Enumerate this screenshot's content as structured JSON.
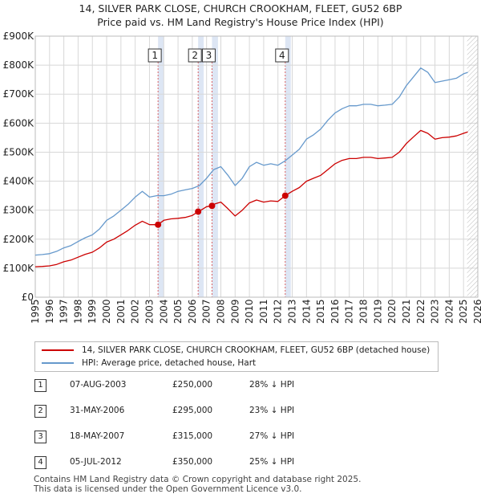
{
  "title_line1": "14, SILVER PARK CLOSE, CHURCH CROOKHAM, FLEET, GU52 6BP",
  "title_line2": "Price paid vs. HM Land Registry's House Price Index (HPI)",
  "legend": {
    "red_label": "14, SILVER PARK CLOSE, CHURCH CROOKHAM, FLEET, GU52 6BP (detached house)",
    "blue_label": "HPI: Average price, detached house, Hart"
  },
  "sales": [
    {
      "num": "1",
      "date": "07-AUG-2003",
      "price": "£250,000",
      "hpi": "28% ↓ HPI"
    },
    {
      "num": "2",
      "date": "31-MAY-2006",
      "price": "£295,000",
      "hpi": "23% ↓ HPI"
    },
    {
      "num": "3",
      "date": "18-MAY-2007",
      "price": "£315,000",
      "hpi": "27% ↓ HPI"
    },
    {
      "num": "4",
      "date": "05-JUL-2012",
      "price": "£350,000",
      "hpi": "25% ↓ HPI"
    }
  ],
  "footer_line1": "Contains HM Land Registry data © Crown copyright and database right 2025.",
  "footer_line2": "This data is licensed under the Open Government Licence v3.0.",
  "colors": {
    "red": "#cc0000",
    "blue": "#6699cc",
    "band": "#dde6f4",
    "grid": "#d8d8d8"
  },
  "chart_data": {
    "type": "line",
    "title": "14, SILVER PARK CLOSE, CHURCH CROOKHAM, FLEET, GU52 6BP",
    "subtitle": "Price paid vs. HM Land Registry's House Price Index (HPI)",
    "xlabel": "",
    "ylabel": "",
    "xlim": [
      1995,
      2026
    ],
    "ylim": [
      0,
      900000
    ],
    "x_ticks": [
      1995,
      1996,
      1997,
      1998,
      1999,
      2000,
      2001,
      2002,
      2003,
      2004,
      2005,
      2006,
      2007,
      2008,
      2009,
      2010,
      2011,
      2012,
      2013,
      2014,
      2015,
      2016,
      2017,
      2018,
      2019,
      2020,
      2021,
      2022,
      2023,
      2024,
      2025,
      2026
    ],
    "y_ticks": [
      0,
      100000,
      200000,
      300000,
      400000,
      500000,
      600000,
      700000,
      800000,
      900000
    ],
    "y_tick_labels": [
      "£0",
      "£100K",
      "£200K",
      "£300K",
      "£400K",
      "£500K",
      "£600K",
      "£700K",
      "£800K",
      "£900K"
    ],
    "grid": true,
    "legend_position": "below",
    "projection_start": 2025.25,
    "sale_bands": [
      {
        "label": "1",
        "x0": 2003.6,
        "x1": 2004.0
      },
      {
        "label": "2",
        "x0": 2006.41,
        "x1": 2006.8
      },
      {
        "label": "3",
        "x0": 2007.38,
        "x1": 2007.8
      },
      {
        "label": "4",
        "x0": 2012.51,
        "x1": 2012.9
      }
    ],
    "sale_points": [
      {
        "label": "1",
        "x": 2003.6,
        "y": 250000
      },
      {
        "label": "2",
        "x": 2006.41,
        "y": 295000
      },
      {
        "label": "3",
        "x": 2007.38,
        "y": 315000
      },
      {
        "label": "4",
        "x": 2012.51,
        "y": 350000
      }
    ],
    "series": [
      {
        "name": "HPI: Average price, detached house, Hart",
        "color": "#6699cc",
        "x": [
          1995,
          1995.5,
          1996,
          1996.5,
          1997,
          1997.5,
          1998,
          1998.5,
          1999,
          1999.5,
          2000,
          2000.5,
          2001,
          2001.5,
          2002,
          2002.5,
          2003,
          2003.5,
          2004,
          2004.5,
          2005,
          2005.5,
          2006,
          2006.5,
          2007,
          2007.5,
          2008,
          2008.5,
          2009,
          2009.5,
          2010,
          2010.5,
          2011,
          2011.5,
          2012,
          2012.5,
          2013,
          2013.5,
          2014,
          2014.5,
          2015,
          2015.5,
          2016,
          2016.5,
          2017,
          2017.5,
          2018,
          2018.5,
          2019,
          2019.5,
          2020,
          2020.5,
          2021,
          2021.5,
          2022,
          2022.5,
          2023,
          2023.5,
          2024,
          2024.5,
          2025,
          2025.3
        ],
        "y": [
          145000,
          147000,
          150000,
          158000,
          170000,
          178000,
          192000,
          205000,
          215000,
          235000,
          265000,
          280000,
          300000,
          320000,
          345000,
          365000,
          345000,
          350000,
          350000,
          355000,
          365000,
          370000,
          375000,
          385000,
          410000,
          440000,
          450000,
          420000,
          385000,
          410000,
          450000,
          465000,
          455000,
          460000,
          455000,
          470000,
          490000,
          510000,
          545000,
          560000,
          580000,
          610000,
          635000,
          650000,
          660000,
          660000,
          665000,
          665000,
          660000,
          662000,
          665000,
          690000,
          730000,
          760000,
          790000,
          775000,
          740000,
          745000,
          750000,
          755000,
          770000,
          775000
        ]
      },
      {
        "name": "14, SILVER PARK CLOSE, CHURCH CROOKHAM, FLEET, GU52 6BP (detached house)",
        "color": "#cc0000",
        "x": [
          1995,
          1995.5,
          1996,
          1996.5,
          1997,
          1997.5,
          1998,
          1998.5,
          1999,
          1999.5,
          2000,
          2000.5,
          2001,
          2001.5,
          2002,
          2002.5,
          2003,
          2003.6,
          2004,
          2004.5,
          2005,
          2005.5,
          2006,
          2006.41,
          2006.6,
          2007,
          2007.38,
          2007.6,
          2008,
          2008.5,
          2009,
          2009.5,
          2010,
          2010.5,
          2011,
          2011.5,
          2012,
          2012.51,
          2013,
          2013.5,
          2014,
          2014.5,
          2015,
          2015.5,
          2016,
          2016.5,
          2017,
          2017.5,
          2018,
          2018.5,
          2019,
          2019.5,
          2020,
          2020.5,
          2021,
          2021.5,
          2022,
          2022.5,
          2023,
          2023.5,
          2024,
          2024.5,
          2025,
          2025.3
        ],
        "y": [
          105000,
          106000,
          108000,
          113000,
          122000,
          128000,
          138000,
          148000,
          155000,
          170000,
          190000,
          200000,
          215000,
          230000,
          248000,
          262000,
          250000,
          250000,
          265000,
          270000,
          272000,
          275000,
          282000,
          295000,
          300000,
          312000,
          315000,
          322000,
          328000,
          305000,
          280000,
          300000,
          325000,
          335000,
          328000,
          332000,
          330000,
          350000,
          365000,
          378000,
          400000,
          410000,
          420000,
          440000,
          460000,
          472000,
          478000,
          478000,
          482000,
          482000,
          478000,
          480000,
          482000,
          500000,
          530000,
          553000,
          575000,
          565000,
          545000,
          550000,
          552000,
          556000,
          565000,
          570000
        ]
      }
    ]
  }
}
